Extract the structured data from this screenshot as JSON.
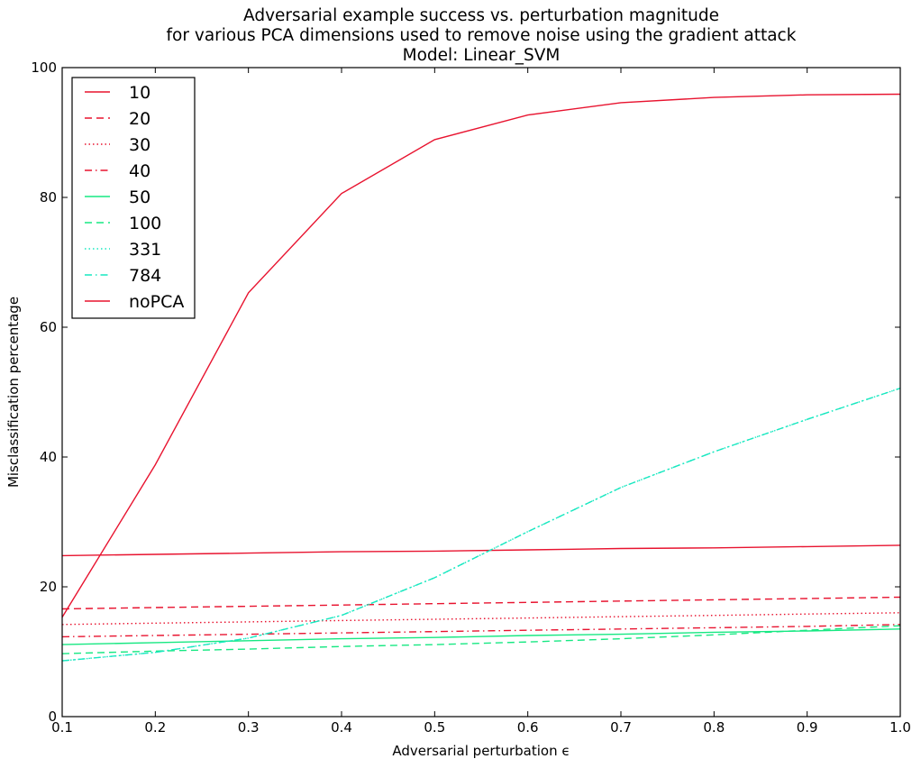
{
  "chart_data": {
    "type": "line",
    "title_lines": [
      "Adversarial example success vs. perturbation magnitude",
      "for various PCA dimensions used to remove noise using the gradient attack",
      "Model: Linear_SVM"
    ],
    "xlabel": "Adversarial perturbation ϵ",
    "ylabel": "Misclassification percentage",
    "xlim": [
      0.1,
      1.0
    ],
    "ylim": [
      0,
      100
    ],
    "x_ticks": [
      "0.1",
      "0.2",
      "0.3",
      "0.4",
      "0.5",
      "0.6",
      "0.7",
      "0.8",
      "0.9",
      "1.0"
    ],
    "y_ticks": [
      "0",
      "20",
      "40",
      "60",
      "80",
      "100"
    ],
    "grid": false,
    "legend_position": "top-left",
    "x": [
      0.1,
      0.2,
      0.3,
      0.4,
      0.5,
      0.6,
      0.7,
      0.8,
      0.9,
      1.0
    ],
    "series": [
      {
        "name": "10",
        "color": "#e8132f",
        "dash": "solid",
        "values": [
          24.8,
          25.0,
          25.2,
          25.4,
          25.5,
          25.7,
          25.9,
          26.0,
          26.2,
          26.4
        ]
      },
      {
        "name": "20",
        "color": "#e8132f",
        "dash": "dashed",
        "values": [
          16.6,
          16.8,
          17.0,
          17.2,
          17.4,
          17.6,
          17.8,
          18.0,
          18.2,
          18.4
        ]
      },
      {
        "name": "30",
        "color": "#e8132f",
        "dash": "dotted",
        "values": [
          14.2,
          14.4,
          14.6,
          14.8,
          15.0,
          15.2,
          15.4,
          15.6,
          15.8,
          16.0
        ]
      },
      {
        "name": "40",
        "color": "#e8132f",
        "dash": "dashdot",
        "values": [
          12.3,
          12.5,
          12.7,
          12.9,
          13.1,
          13.3,
          13.5,
          13.7,
          13.9,
          14.2
        ]
      },
      {
        "name": "50",
        "color": "#17e882",
        "dash": "solid",
        "values": [
          11.1,
          11.4,
          11.7,
          12.0,
          12.2,
          12.5,
          12.7,
          13.0,
          13.2,
          13.5
        ]
      },
      {
        "name": "100",
        "color": "#17e882",
        "dash": "dashed",
        "values": [
          9.7,
          10.1,
          10.4,
          10.8,
          11.1,
          11.5,
          12.0,
          12.6,
          13.3,
          14.0
        ]
      },
      {
        "name": "331",
        "color": "#17e8c0",
        "dash": "dotted",
        "values": [
          8.6,
          9.9,
          12.1,
          15.6,
          21.4,
          28.5,
          35.3,
          40.8,
          45.8,
          50.6
        ]
      },
      {
        "name": "784",
        "color": "#17e8c0",
        "dash": "dashdot",
        "values": [
          8.6,
          9.9,
          12.1,
          15.6,
          21.4,
          28.5,
          35.3,
          40.8,
          45.8,
          50.6
        ]
      },
      {
        "name": "noPCA",
        "color": "#e8132f",
        "dash": "solid",
        "values": [
          15.3,
          38.8,
          65.3,
          80.6,
          88.9,
          92.7,
          94.6,
          95.4,
          95.8,
          95.9
        ]
      }
    ]
  }
}
